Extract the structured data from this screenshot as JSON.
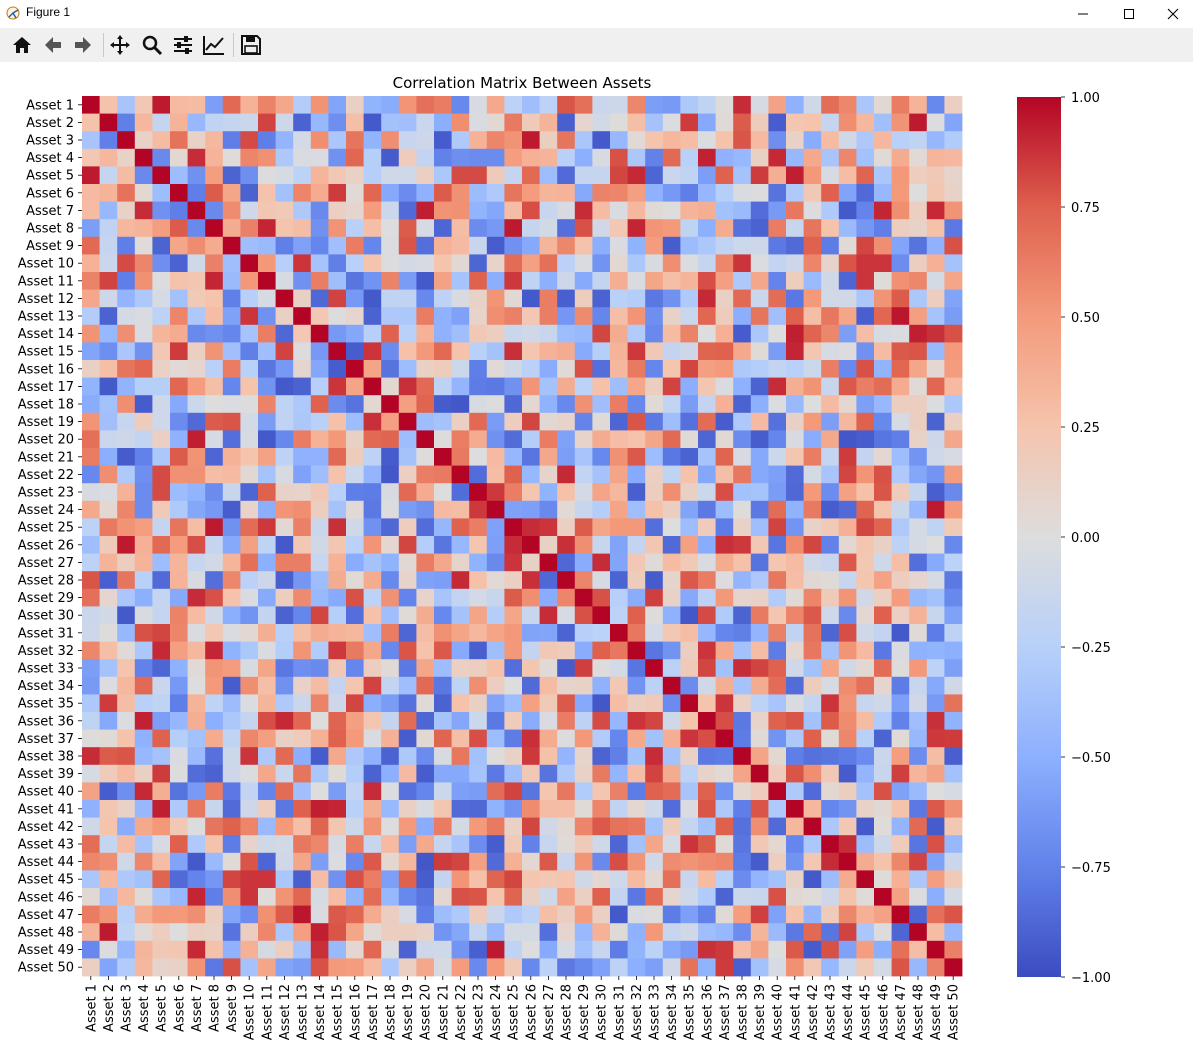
{
  "window": {
    "title": "Figure 1",
    "icons": {
      "app": "matplotlib-icon",
      "minimize": "minimize-icon",
      "maximize": "maximize-icon",
      "close": "close-icon"
    }
  },
  "toolbar": {
    "buttons": [
      "home-icon",
      "back-arrow-icon",
      "forward-arrow-icon",
      "pan-icon",
      "zoom-icon",
      "configure-subplots-icon",
      "edit-axis-icon",
      "save-icon"
    ]
  },
  "chart_data": {
    "type": "heatmap",
    "title": "Correlation Matrix Between Assets",
    "labels": [
      "Asset 1",
      "Asset 2",
      "Asset 3",
      "Asset 4",
      "Asset 5",
      "Asset 6",
      "Asset 7",
      "Asset 8",
      "Asset 9",
      "Asset 10",
      "Asset 11",
      "Asset 12",
      "Asset 13",
      "Asset 14",
      "Asset 15",
      "Asset 16",
      "Asset 17",
      "Asset 18",
      "Asset 19",
      "Asset 20",
      "Asset 21",
      "Asset 22",
      "Asset 23",
      "Asset 24",
      "Asset 25",
      "Asset 26",
      "Asset 27",
      "Asset 28",
      "Asset 29",
      "Asset 30",
      "Asset 31",
      "Asset 32",
      "Asset 33",
      "Asset 34",
      "Asset 35",
      "Asset 36",
      "Asset 37",
      "Asset 38",
      "Asset 39",
      "Asset 40",
      "Asset 41",
      "Asset 42",
      "Asset 43",
      "Asset 44",
      "Asset 45",
      "Asset 46",
      "Asset 47",
      "Asset 48",
      "Asset 49",
      "Asset 50"
    ],
    "colormap": "coolwarm",
    "vmin": -1.0,
    "vmax": 1.0,
    "colorbar_ticks": [
      "1.00",
      "0.75",
      "0.50",
      "0.25",
      "0.00",
      "−0.25",
      "−0.50",
      "−0.75",
      "−1.00"
    ],
    "diagonal": 1.0,
    "off_diagonal_note": "approximate correlation matrix; off-diagonal values estimated from colors",
    "value_range_observed": [
      -0.95,
      0.95
    ],
    "grid": false,
    "colors": {
      "low": "#3b4cc0",
      "mid": "#dddddd",
      "high": "#b40426"
    }
  }
}
